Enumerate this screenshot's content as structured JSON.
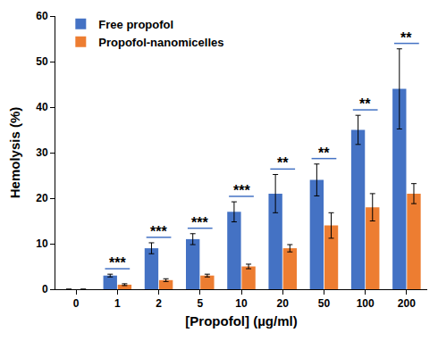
{
  "chart_data": {
    "type": "bar",
    "x_label": "[Propofol] (µg/ml)",
    "y_label": "Hemolysis (%)",
    "categories": [
      "0",
      "1",
      "2",
      "5",
      "10",
      "20",
      "50",
      "100",
      "200"
    ],
    "series": [
      {
        "name": "Free propofol",
        "color": "#4472c4",
        "values": [
          0,
          3,
          9,
          11,
          17,
          21,
          24,
          35,
          44
        ],
        "errors": [
          0,
          0.3,
          1.2,
          1.2,
          2.2,
          4.2,
          3.5,
          3.2,
          8.8
        ]
      },
      {
        "name": "Propofol-nanomicelles",
        "color": "#ed7d31",
        "values": [
          0,
          1,
          2,
          3,
          5,
          9,
          14,
          18,
          21
        ],
        "errors": [
          0,
          0.2,
          0.3,
          0.3,
          0.5,
          0.8,
          2.8,
          3,
          2.2
        ]
      }
    ],
    "annotations": [
      null,
      "***",
      "***",
      "***",
      "***",
      "**",
      "**",
      "**",
      "**"
    ],
    "ylim": [
      0,
      60
    ],
    "yticks": [
      0,
      10,
      20,
      30,
      40,
      50,
      60
    ],
    "grid": false,
    "legend": "top-left"
  }
}
